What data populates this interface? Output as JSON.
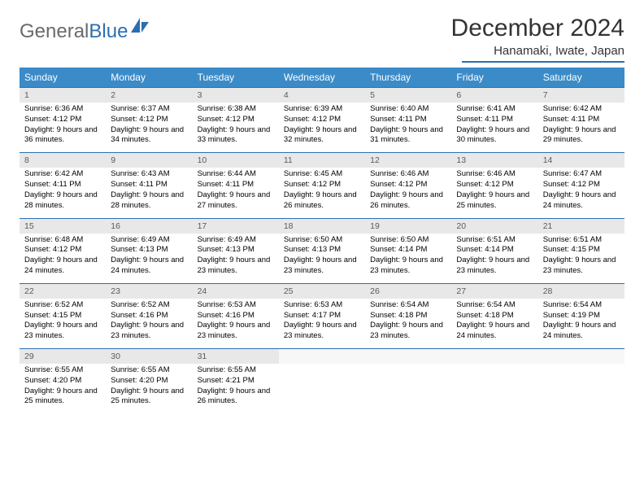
{
  "logo": {
    "text1": "General",
    "text2": "Blue"
  },
  "title": "December 2024",
  "location": "Hanamaki, Iwate, Japan",
  "colors": {
    "header_bg": "#3b8bc8",
    "accent": "#2c6fb0",
    "daynum_bg": "#e8e8e8",
    "logo_gray": "#6a6a6a",
    "logo_blue": "#2c6fb0"
  },
  "weekdays": [
    "Sunday",
    "Monday",
    "Tuesday",
    "Wednesday",
    "Thursday",
    "Friday",
    "Saturday"
  ],
  "days": [
    {
      "n": 1,
      "sr": "6:36 AM",
      "ss": "4:12 PM",
      "dl": "9 hours and 36 minutes."
    },
    {
      "n": 2,
      "sr": "6:37 AM",
      "ss": "4:12 PM",
      "dl": "9 hours and 34 minutes."
    },
    {
      "n": 3,
      "sr": "6:38 AM",
      "ss": "4:12 PM",
      "dl": "9 hours and 33 minutes."
    },
    {
      "n": 4,
      "sr": "6:39 AM",
      "ss": "4:12 PM",
      "dl": "9 hours and 32 minutes."
    },
    {
      "n": 5,
      "sr": "6:40 AM",
      "ss": "4:11 PM",
      "dl": "9 hours and 31 minutes."
    },
    {
      "n": 6,
      "sr": "6:41 AM",
      "ss": "4:11 PM",
      "dl": "9 hours and 30 minutes."
    },
    {
      "n": 7,
      "sr": "6:42 AM",
      "ss": "4:11 PM",
      "dl": "9 hours and 29 minutes."
    },
    {
      "n": 8,
      "sr": "6:42 AM",
      "ss": "4:11 PM",
      "dl": "9 hours and 28 minutes."
    },
    {
      "n": 9,
      "sr": "6:43 AM",
      "ss": "4:11 PM",
      "dl": "9 hours and 28 minutes."
    },
    {
      "n": 10,
      "sr": "6:44 AM",
      "ss": "4:11 PM",
      "dl": "9 hours and 27 minutes."
    },
    {
      "n": 11,
      "sr": "6:45 AM",
      "ss": "4:12 PM",
      "dl": "9 hours and 26 minutes."
    },
    {
      "n": 12,
      "sr": "6:46 AM",
      "ss": "4:12 PM",
      "dl": "9 hours and 26 minutes."
    },
    {
      "n": 13,
      "sr": "6:46 AM",
      "ss": "4:12 PM",
      "dl": "9 hours and 25 minutes."
    },
    {
      "n": 14,
      "sr": "6:47 AM",
      "ss": "4:12 PM",
      "dl": "9 hours and 24 minutes."
    },
    {
      "n": 15,
      "sr": "6:48 AM",
      "ss": "4:12 PM",
      "dl": "9 hours and 24 minutes."
    },
    {
      "n": 16,
      "sr": "6:49 AM",
      "ss": "4:13 PM",
      "dl": "9 hours and 24 minutes."
    },
    {
      "n": 17,
      "sr": "6:49 AM",
      "ss": "4:13 PM",
      "dl": "9 hours and 23 minutes."
    },
    {
      "n": 18,
      "sr": "6:50 AM",
      "ss": "4:13 PM",
      "dl": "9 hours and 23 minutes."
    },
    {
      "n": 19,
      "sr": "6:50 AM",
      "ss": "4:14 PM",
      "dl": "9 hours and 23 minutes."
    },
    {
      "n": 20,
      "sr": "6:51 AM",
      "ss": "4:14 PM",
      "dl": "9 hours and 23 minutes."
    },
    {
      "n": 21,
      "sr": "6:51 AM",
      "ss": "4:15 PM",
      "dl": "9 hours and 23 minutes."
    },
    {
      "n": 22,
      "sr": "6:52 AM",
      "ss": "4:15 PM",
      "dl": "9 hours and 23 minutes."
    },
    {
      "n": 23,
      "sr": "6:52 AM",
      "ss": "4:16 PM",
      "dl": "9 hours and 23 minutes."
    },
    {
      "n": 24,
      "sr": "6:53 AM",
      "ss": "4:16 PM",
      "dl": "9 hours and 23 minutes."
    },
    {
      "n": 25,
      "sr": "6:53 AM",
      "ss": "4:17 PM",
      "dl": "9 hours and 23 minutes."
    },
    {
      "n": 26,
      "sr": "6:54 AM",
      "ss": "4:18 PM",
      "dl": "9 hours and 23 minutes."
    },
    {
      "n": 27,
      "sr": "6:54 AM",
      "ss": "4:18 PM",
      "dl": "9 hours and 24 minutes."
    },
    {
      "n": 28,
      "sr": "6:54 AM",
      "ss": "4:19 PM",
      "dl": "9 hours and 24 minutes."
    },
    {
      "n": 29,
      "sr": "6:55 AM",
      "ss": "4:20 PM",
      "dl": "9 hours and 25 minutes."
    },
    {
      "n": 30,
      "sr": "6:55 AM",
      "ss": "4:20 PM",
      "dl": "9 hours and 25 minutes."
    },
    {
      "n": 31,
      "sr": "6:55 AM",
      "ss": "4:21 PM",
      "dl": "9 hours and 26 minutes."
    }
  ],
  "labels": {
    "sunrise": "Sunrise:",
    "sunset": "Sunset:",
    "daylight": "Daylight:"
  },
  "layout": {
    "first_weekday_index": 0,
    "total_cells": 35
  }
}
